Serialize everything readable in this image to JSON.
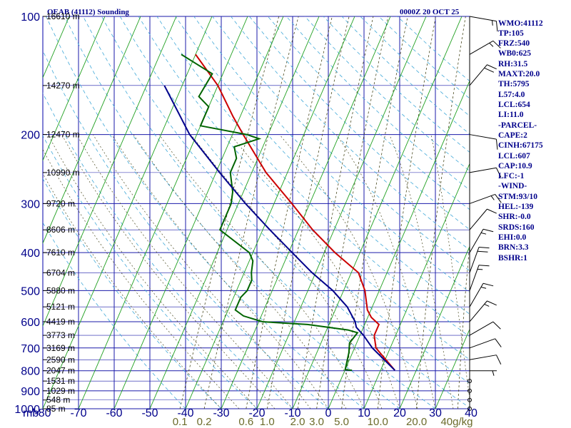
{
  "header": {
    "title": "OEAB (41112) Sounding",
    "datetime": "0000Z 20 OCT 25"
  },
  "chart_data": {
    "type": "skew-t log-p",
    "pressure_axis": {
      "unit_label": "mb",
      "levels": [
        "100",
        "200",
        "300",
        "400",
        "500",
        "600",
        "700",
        "800",
        "900",
        "1000"
      ],
      "range": [
        100,
        1000
      ],
      "scale": "log"
    },
    "temperature_axis": {
      "ticks": [
        "-80",
        "-70",
        "-60",
        "-50",
        "-40",
        "-30",
        "-20",
        "-10",
        "0",
        "10",
        "20",
        "30",
        "40"
      ],
      "range": [
        -80,
        40
      ]
    },
    "mixing_ratio_labels": [
      "0.1",
      "0.2",
      "0.6",
      "1.0",
      "2.0",
      "3.0",
      "5.0",
      "10.0",
      "20.0",
      "40g/kg"
    ],
    "height_labels": [
      {
        "p": 100,
        "text": "16610 m"
      },
      {
        "p": 150,
        "text": "14270 m"
      },
      {
        "p": 200,
        "text": "12470 m"
      },
      {
        "p": 250,
        "text": "10990 m"
      },
      {
        "p": 300,
        "text": "9720 m"
      },
      {
        "p": 350,
        "text": "8606 m"
      },
      {
        "p": 400,
        "text": "7610 m"
      },
      {
        "p": 450,
        "text": "6704 m"
      },
      {
        "p": 500,
        "text": "5880 m"
      },
      {
        "p": 550,
        "text": "5121 m"
      },
      {
        "p": 600,
        "text": "4419 m"
      },
      {
        "p": 650,
        "text": "3773 m"
      },
      {
        "p": 700,
        "text": "3169 m"
      },
      {
        "p": 750,
        "text": "2590 m"
      },
      {
        "p": 800,
        "text": "2047 m"
      },
      {
        "p": 850,
        "text": "1531 m"
      },
      {
        "p": 900,
        "text": "1029 m"
      },
      {
        "p": 950,
        "text": "548 m"
      },
      {
        "p": 1000,
        "text": "85 m"
      }
    ],
    "series": [
      {
        "key": "temperature",
        "color": "#cc0000",
        "points": [
          [
            798,
            14
          ],
          [
            700,
            6
          ],
          [
            650,
            4
          ],
          [
            610,
            4
          ],
          [
            585,
            1
          ],
          [
            560,
            -1
          ],
          [
            500,
            -4
          ],
          [
            450,
            -8
          ],
          [
            400,
            -17
          ],
          [
            350,
            -26
          ],
          [
            300,
            -35
          ],
          [
            250,
            -46
          ],
          [
            200,
            -57
          ],
          [
            180,
            -62
          ],
          [
            150,
            -70
          ],
          [
            125,
            -80
          ]
        ]
      },
      {
        "key": "dewpoint",
        "color": "#006400",
        "points": [
          [
            798,
            2
          ],
          [
            795,
            0
          ],
          [
            720,
            -1
          ],
          [
            680,
            -2
          ],
          [
            640,
            -1
          ],
          [
            630,
            -4
          ],
          [
            610,
            -16
          ],
          [
            600,
            -29
          ],
          [
            580,
            -35
          ],
          [
            560,
            -38
          ],
          [
            550,
            -38
          ],
          [
            520,
            -38
          ],
          [
            500,
            -37
          ],
          [
            470,
            -37
          ],
          [
            450,
            -38
          ],
          [
            420,
            -39
          ],
          [
            400,
            -41
          ],
          [
            350,
            -52
          ],
          [
            300,
            -52
          ],
          [
            280,
            -53
          ],
          [
            250,
            -56
          ],
          [
            230,
            -56
          ],
          [
            215,
            -58
          ],
          [
            205,
            -52
          ],
          [
            200,
            -56
          ],
          [
            190,
            -70
          ],
          [
            170,
            -70
          ],
          [
            160,
            -74
          ],
          [
            140,
            -73
          ],
          [
            125,
            -84
          ]
        ]
      },
      {
        "key": "parcel",
        "color": "#00008b",
        "points": [
          [
            798,
            14
          ],
          [
            700,
            5
          ],
          [
            650,
            1
          ],
          [
            620,
            -2
          ],
          [
            600,
            -3
          ],
          [
            550,
            -7
          ],
          [
            500,
            -13
          ],
          [
            450,
            -21
          ],
          [
            400,
            -29
          ],
          [
            350,
            -38
          ],
          [
            300,
            -48
          ],
          [
            250,
            -59
          ],
          [
            200,
            -72
          ],
          [
            150,
            -85
          ]
        ]
      }
    ],
    "wind_barbs": [
      {
        "p": 1000,
        "dir": 0,
        "spd": 0
      },
      {
        "p": 950,
        "dir": 0,
        "spd": 0
      },
      {
        "p": 900,
        "dir": 0,
        "spd": 0
      },
      {
        "p": 850,
        "dir": 0,
        "spd": 0
      },
      {
        "p": 800,
        "dir": 90,
        "spd": 5
      },
      {
        "p": 750,
        "dir": 80,
        "spd": 10
      },
      {
        "p": 700,
        "dir": 70,
        "spd": 10
      },
      {
        "p": 650,
        "dir": 60,
        "spd": 10
      },
      {
        "p": 600,
        "dir": 40,
        "spd": 15
      },
      {
        "p": 550,
        "dir": 30,
        "spd": 15
      },
      {
        "p": 500,
        "dir": 20,
        "spd": 15
      },
      {
        "p": 450,
        "dir": 20,
        "spd": 20
      },
      {
        "p": 400,
        "dir": 30,
        "spd": 15
      },
      {
        "p": 350,
        "dir": 40,
        "spd": 10
      },
      {
        "p": 300,
        "dir": 70,
        "spd": 15
      },
      {
        "p": 250,
        "dir": 80,
        "spd": 10
      },
      {
        "p": 200,
        "dir": 100,
        "spd": 10
      },
      {
        "p": 150,
        "dir": 40,
        "spd": 20
      },
      {
        "p": 125,
        "dir": 60,
        "spd": 15
      },
      {
        "p": 100,
        "dir": 100,
        "spd": 15
      }
    ],
    "grid": true,
    "legend": "none"
  },
  "stats": {
    "wmo": "WMO:41112",
    "tp": "TP:105",
    "frz": "FRZ:540",
    "wb0": "WB0:625",
    "rh": "RH:31.5",
    "maxt": "MAXT:20.0",
    "th": "TH:5795",
    "l57": "L57:4.0",
    "lcl": "LCL:654",
    "li": "LI:11.0",
    "parcel_head": "-PARCEL-",
    "cape": "CAPE:2",
    "cinh": "CINH:67175",
    "plcl": "LCL:607",
    "cap": "CAP:10.9",
    "lfc": "LFC:-1",
    "wind_head": "-WIND-",
    "stm": "STM:93/10",
    "hel": "HEL:-139",
    "shr": "SHR:-0.0",
    "srds": "SRDS:160",
    "ehi": "EHI:0.0",
    "brn": "BRN:3.3",
    "bshr": "BSHR:1"
  }
}
